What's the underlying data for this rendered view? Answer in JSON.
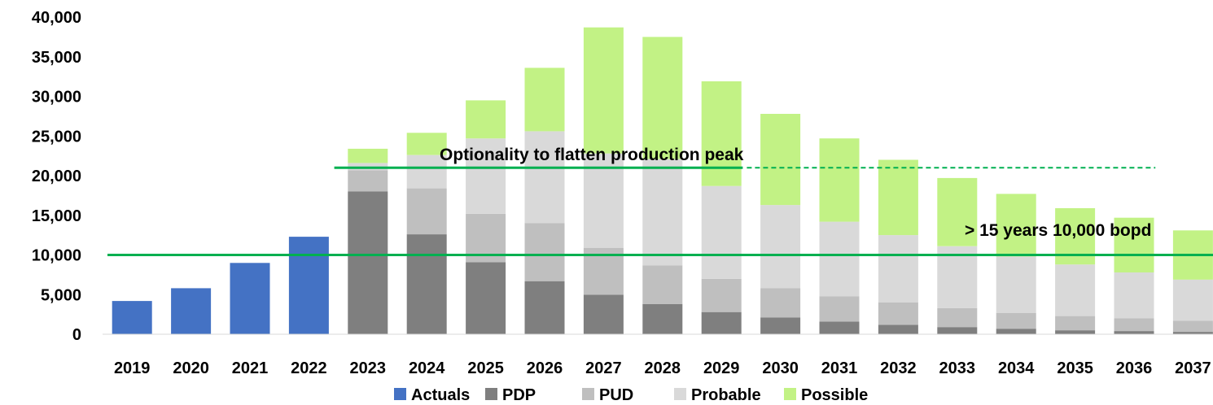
{
  "chart_data": {
    "type": "bar",
    "stacked": true,
    "categories": [
      "2019",
      "2020",
      "2021",
      "2022",
      "2023",
      "2024",
      "2025",
      "2026",
      "2027",
      "2028",
      "2029",
      "2030",
      "2031",
      "2032",
      "2033",
      "2034",
      "2035",
      "2036",
      "2037"
    ],
    "series": [
      {
        "name": "Actuals",
        "color": "#4472C4",
        "values": [
          4200,
          5800,
          9000,
          12300,
          0,
          0,
          0,
          0,
          0,
          0,
          0,
          0,
          0,
          0,
          0,
          0,
          0,
          0,
          0
        ]
      },
      {
        "name": "PDP",
        "color": "#7F7F7F",
        "values": [
          0,
          0,
          0,
          0,
          18000,
          12600,
          9100,
          6700,
          5000,
          3800,
          2800,
          2100,
          1600,
          1200,
          900,
          700,
          500,
          400,
          300
        ]
      },
      {
        "name": "PUD",
        "color": "#BFBFBF",
        "values": [
          0,
          0,
          0,
          0,
          2700,
          5800,
          6100,
          7300,
          5900,
          4900,
          4200,
          3700,
          3200,
          2800,
          2400,
          2000,
          1800,
          1600,
          1400
        ]
      },
      {
        "name": "Probable",
        "color": "#D9D9D9",
        "values": [
          0,
          0,
          0,
          0,
          900,
          4200,
          9500,
          11600,
          11900,
          13400,
          11700,
          10500,
          9400,
          8500,
          7800,
          7100,
          6500,
          5800,
          5200
        ]
      },
      {
        "name": "Possible",
        "color": "#C2F285",
        "values": [
          0,
          0,
          0,
          0,
          1800,
          2800,
          4800,
          8000,
          15900,
          15400,
          13200,
          11500,
          10500,
          9500,
          8600,
          7900,
          7100,
          6900,
          6200
        ]
      }
    ],
    "ylim": [
      0,
      40000
    ],
    "yticks": [
      "0",
      "5,000",
      "10,000",
      "15,000",
      "20,000",
      "25,000",
      "30,000",
      "35,000",
      "40,000"
    ],
    "legend_position": "bottom",
    "grid": false,
    "reference_lines": [
      {
        "value": 10000,
        "from_category": "2019",
        "to_category": "2037",
        "style": "solid",
        "color": "#00B050"
      },
      {
        "value": 21000,
        "from_category": "2023",
        "to_category": "2029",
        "style": "solid",
        "color": "#00B050"
      },
      {
        "value": 21000,
        "from_category": "2030",
        "to_category": "2036",
        "style": "dashed",
        "color": "#00B050"
      }
    ],
    "annotations": [
      {
        "text": "Optionality to flatten production peak"
      },
      {
        "text": "> 15 years 10,000 bopd"
      }
    ]
  }
}
